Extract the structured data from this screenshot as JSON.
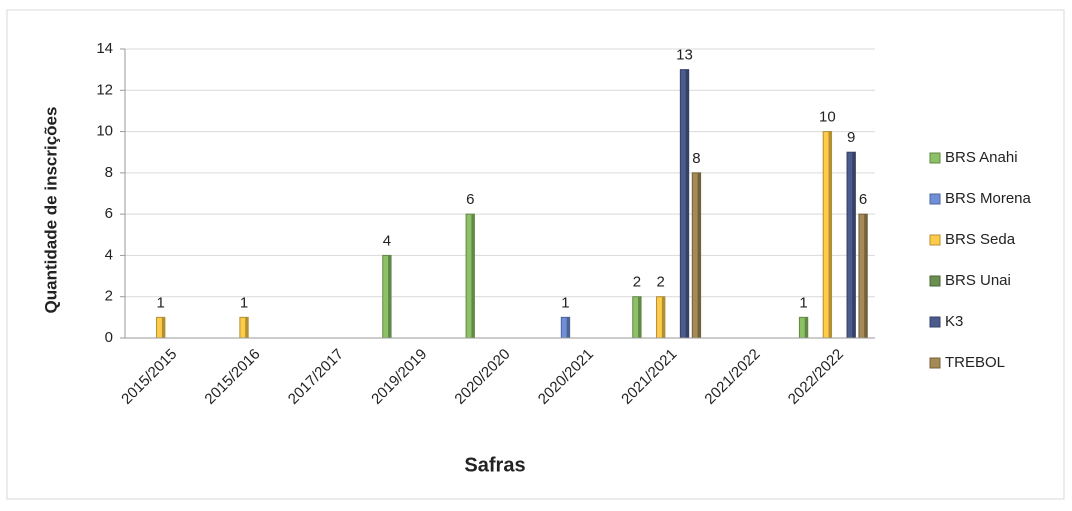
{
  "chart_data": {
    "type": "bar",
    "ylabel": "Quantidade de inscrições",
    "xlabel": "Safras",
    "categories": [
      "2015/2015",
      "2015/2016",
      "2017/2017",
      "2019/2019",
      "2020/2020",
      "2020/2021",
      "2021/2021",
      "2021/2022",
      "2022/2022"
    ],
    "series": [
      {
        "name": "BRS Anahi",
        "color": "#8cc265",
        "values": [
          null,
          null,
          null,
          4,
          6,
          null,
          2,
          null,
          1
        ]
      },
      {
        "name": "BRS Morena",
        "color": "#6f8fd8",
        "values": [
          null,
          null,
          null,
          null,
          null,
          1,
          null,
          null,
          null
        ]
      },
      {
        "name": "BRS Seda",
        "color": "#ffcc4a",
        "values": [
          1,
          1,
          null,
          null,
          null,
          null,
          2,
          null,
          10
        ]
      },
      {
        "name": "BRS Unai",
        "color": "#6a8f4e",
        "values": [
          null,
          null,
          null,
          null,
          null,
          null,
          null,
          null,
          null
        ]
      },
      {
        "name": "K3",
        "color": "#4b5b8e",
        "values": [
          null,
          null,
          null,
          null,
          null,
          null,
          13,
          null,
          9
        ]
      },
      {
        "name": "TREBOL",
        "color": "#a48b55",
        "values": [
          null,
          null,
          null,
          null,
          null,
          null,
          8,
          null,
          6
        ]
      }
    ],
    "ylim": [
      0,
      14
    ],
    "yticks": [
      0,
      2,
      4,
      6,
      8,
      10,
      12,
      14
    ],
    "grid": true,
    "legend": "right"
  }
}
